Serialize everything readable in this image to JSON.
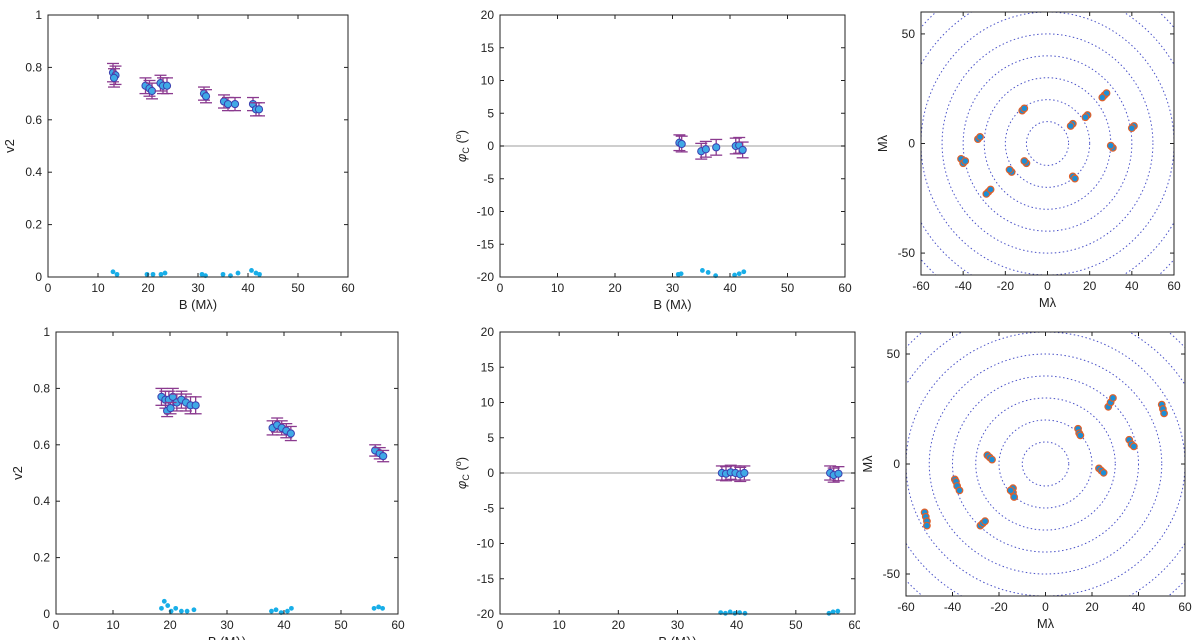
{
  "figure": {
    "background": "#ffffff",
    "colors": {
      "data_point": "#3fa9e6",
      "data_point_edge": "#3b3fb0",
      "error_bar": "#8b3a8f",
      "residual_point": "#18aee8",
      "zero_line": "#bdbdbd",
      "uv_ring": "#4a52c8",
      "uv_point_fill": "#1c8fd6",
      "uv_point_edge": "#e0602a"
    }
  },
  "chart_data": [
    {
      "id": "v2-top",
      "type": "scatter",
      "xlabel": "B (Mλ)",
      "ylabel": "v2",
      "xlim": [
        0,
        60
      ],
      "ylim": [
        0,
        1
      ],
      "xticks": [
        "0",
        "10",
        "20",
        "30",
        "40",
        "50",
        "60"
      ],
      "yticks": [
        "0",
        "0.2",
        "0.4",
        "0.6",
        "0.8",
        "1"
      ],
      "series": [
        {
          "x": [
            13.0,
            13.5,
            13.2,
            19.5,
            20.3,
            20.8,
            22.5,
            23.0,
            23.8,
            31.2,
            31.6,
            35.2,
            36.0,
            37.4,
            41.0,
            41.6,
            42.2
          ],
          "y": [
            0.78,
            0.77,
            0.76,
            0.73,
            0.72,
            0.71,
            0.74,
            0.73,
            0.73,
            0.7,
            0.69,
            0.67,
            0.66,
            0.66,
            0.66,
            0.64,
            0.64
          ],
          "yerr": [
            0.035,
            0.035,
            0.035,
            0.03,
            0.03,
            0.03,
            0.03,
            0.03,
            0.03,
            0.025,
            0.025,
            0.025,
            0.025,
            0.025,
            0.025,
            0.025,
            0.025
          ]
        },
        {
          "x": [
            13.0,
            13.8,
            19.8,
            21.0,
            22.6,
            23.4,
            30.8,
            31.5,
            35.0,
            36.5,
            38.0,
            40.7,
            41.6,
            42.3
          ],
          "y": [
            0.02,
            0.01,
            0.01,
            0.01,
            0.01,
            0.015,
            0.01,
            0.005,
            0.01,
            0.005,
            0.015,
            0.025,
            0.015,
            0.01
          ]
        }
      ]
    },
    {
      "id": "cp-top",
      "type": "scatter",
      "xlabel": "B (Mλ)",
      "ylabel": "φC (o)",
      "xlim": [
        0,
        60
      ],
      "ylim": [
        -20,
        20
      ],
      "xticks": [
        "0",
        "10",
        "20",
        "30",
        "40",
        "50",
        "60"
      ],
      "yticks": [
        "-20",
        "-15",
        "-10",
        "-5",
        "0",
        "5",
        "10",
        "15",
        "20"
      ],
      "series": [
        {
          "x": [
            31.2,
            31.6,
            35.0,
            35.8,
            37.6,
            41.0,
            41.6,
            42.2
          ],
          "y": [
            0.5,
            0.3,
            -0.8,
            -0.5,
            -0.2,
            0.0,
            0.1,
            -0.6
          ],
          "yerr": [
            1.2,
            1.2,
            1.2,
            1.2,
            1.2,
            1.2,
            1.2,
            1.2
          ]
        },
        {
          "x": [
            31.0,
            31.5,
            35.2,
            36.2,
            37.5,
            40.8,
            41.6,
            42.4
          ],
          "y": [
            -19.6,
            -19.5,
            -19.0,
            -19.3,
            -19.8,
            -19.7,
            -19.5,
            -19.2
          ]
        }
      ]
    },
    {
      "id": "uv-top",
      "type": "scatter",
      "xlabel": "Mλ",
      "ylabel": "Mλ",
      "xlim": [
        -60,
        60
      ],
      "ylim": [
        -60,
        60
      ],
      "xticks": [
        "-60",
        "-40",
        "-20",
        "0",
        "20",
        "40",
        "60"
      ],
      "yticks": [
        "-50",
        "0",
        "50"
      ],
      "rings": [
        10,
        20,
        30,
        40,
        50,
        60,
        70,
        80
      ],
      "uv_points": [
        [
          -41,
          -7
        ],
        [
          -40,
          -9
        ],
        [
          -39,
          -8
        ],
        [
          -33,
          2
        ],
        [
          -32,
          3
        ],
        [
          -12,
          15
        ],
        [
          -11,
          16
        ],
        [
          -10,
          -9
        ],
        [
          -11,
          -8
        ],
        [
          -17,
          -13
        ],
        [
          -18,
          -12
        ],
        [
          -28,
          -22
        ],
        [
          -29,
          -23
        ],
        [
          -27,
          -21
        ],
        [
          12,
          9
        ],
        [
          11,
          8
        ],
        [
          19,
          13
        ],
        [
          18,
          12
        ],
        [
          27,
          22
        ],
        [
          28,
          23
        ],
        [
          26,
          21
        ],
        [
          31,
          -2
        ],
        [
          30,
          -1
        ],
        [
          41,
          8
        ],
        [
          40,
          7
        ],
        [
          12,
          -15
        ],
        [
          13,
          -16
        ]
      ]
    },
    {
      "id": "v2-bottom",
      "type": "scatter",
      "xlabel": "B (Mλ)",
      "ylabel": "v2",
      "xlim": [
        0,
        60
      ],
      "ylim": [
        0,
        1
      ],
      "xticks": [
        "0",
        "10",
        "20",
        "30",
        "40",
        "50",
        "60"
      ],
      "yticks": [
        "0",
        "0.2",
        "0.4",
        "0.6",
        "0.8",
        "1"
      ],
      "series": [
        {
          "x": [
            18.5,
            19.2,
            19.8,
            20.5,
            21.2,
            22.0,
            22.8,
            23.6,
            24.5,
            19.5,
            20.1,
            38.0,
            38.8,
            39.6,
            40.4,
            41.2,
            56.0,
            56.8,
            57.4
          ],
          "y": [
            0.77,
            0.76,
            0.76,
            0.77,
            0.75,
            0.76,
            0.75,
            0.74,
            0.74,
            0.72,
            0.73,
            0.66,
            0.67,
            0.66,
            0.65,
            0.64,
            0.58,
            0.57,
            0.56
          ],
          "yerr": [
            0.03,
            0.03,
            0.03,
            0.03,
            0.03,
            0.03,
            0.03,
            0.03,
            0.03,
            0.02,
            0.02,
            0.025,
            0.025,
            0.025,
            0.025,
            0.025,
            0.02,
            0.02,
            0.02
          ]
        },
        {
          "x": [
            18.5,
            19.0,
            19.6,
            20.2,
            21.0,
            22.0,
            23.0,
            24.2,
            37.8,
            38.6,
            39.5,
            40.6,
            41.3,
            55.8,
            56.6,
            57.3
          ],
          "y": [
            0.02,
            0.045,
            0.03,
            0.01,
            0.02,
            0.01,
            0.01,
            0.015,
            0.01,
            0.015,
            0.005,
            0.01,
            0.02,
            0.02,
            0.025,
            0.02
          ]
        }
      ]
    },
    {
      "id": "cp-bottom",
      "type": "scatter",
      "xlabel": "B (Mλ)",
      "ylabel": "φC (o)",
      "xlim": [
        0,
        60
      ],
      "ylim": [
        -20,
        20
      ],
      "xticks": [
        "0",
        "10",
        "20",
        "30",
        "40",
        "50",
        "60"
      ],
      "yticks": [
        "-20",
        "-15",
        "-10",
        "-5",
        "0",
        "5",
        "10",
        "15",
        "20"
      ],
      "series": [
        {
          "x": [
            37.5,
            38.2,
            39.0,
            39.8,
            40.6,
            41.3,
            55.8,
            56.4,
            57.2
          ],
          "y": [
            0.0,
            -0.1,
            0.1,
            0.0,
            -0.2,
            0.0,
            0.0,
            -0.3,
            -0.1
          ],
          "yerr": [
            1.0,
            1.0,
            1.0,
            1.0,
            1.0,
            1.0,
            1.0,
            1.0,
            1.0
          ]
        },
        {
          "x": [
            37.3,
            38.1,
            38.9,
            39.7,
            40.5,
            41.4,
            55.6,
            56.3,
            57.1
          ],
          "y": [
            -19.8,
            -19.9,
            -19.7,
            -19.9,
            -19.8,
            -19.9,
            -19.9,
            -19.7,
            -19.6
          ]
        }
      ]
    },
    {
      "id": "uv-bottom",
      "type": "scatter",
      "xlabel": "Mλ",
      "ylabel": "Mλ",
      "xlim": [
        -60,
        60
      ],
      "ylim": [
        -60,
        60
      ],
      "xticks": [
        "-60",
        "-40",
        "-20",
        "0",
        "20",
        "40",
        "60"
      ],
      "yticks": [
        "-50",
        "0",
        "50"
      ],
      "rings": [
        10,
        20,
        30,
        40,
        50,
        60,
        70,
        80
      ],
      "uv_points": [
        [
          -52,
          -22
        ],
        [
          -51.5,
          -24
        ],
        [
          -51,
          -26
        ],
        [
          -51,
          -28
        ],
        [
          -39,
          -7
        ],
        [
          -38.5,
          -8
        ],
        [
          -38,
          -10
        ],
        [
          -37,
          -12
        ],
        [
          -25,
          4
        ],
        [
          -24,
          3
        ],
        [
          -23,
          2
        ],
        [
          -28,
          -28
        ],
        [
          -27,
          -27
        ],
        [
          -26,
          -26
        ],
        [
          -14,
          -11
        ],
        [
          -14,
          -13
        ],
        [
          -13.5,
          -15
        ],
        [
          -15,
          -12
        ],
        [
          14,
          16
        ],
        [
          14.5,
          14
        ],
        [
          15,
          13
        ],
        [
          23,
          -2
        ],
        [
          24,
          -3
        ],
        [
          25,
          -4
        ],
        [
          27,
          26
        ],
        [
          28,
          28
        ],
        [
          29,
          30
        ],
        [
          36,
          11
        ],
        [
          37,
          9
        ],
        [
          38,
          8
        ],
        [
          50,
          27
        ],
        [
          50.5,
          25
        ],
        [
          51,
          23
        ]
      ]
    }
  ]
}
